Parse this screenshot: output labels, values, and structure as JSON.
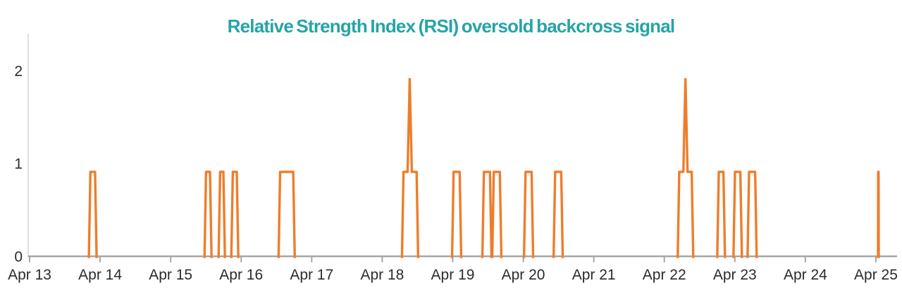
{
  "chart_data": {
    "type": "line",
    "title": "Relative Strength Index (RSI) oversold backcross signal",
    "xlabel": "",
    "ylabel": "",
    "legend": "none",
    "grid": "off",
    "x_axis": {
      "tick_labels": [
        "Apr 13",
        "Apr 14",
        "Apr 15",
        "Apr 16",
        "Apr 17",
        "Apr 18",
        "Apr 19",
        "Apr 20",
        "Apr 21",
        "Apr 22",
        "Apr 23",
        "Apr 24",
        "Apr 25"
      ],
      "tick_days": [
        13,
        14,
        15,
        16,
        17,
        18,
        19,
        20,
        21,
        22,
        23,
        24,
        25
      ],
      "range_days": [
        13,
        25.3
      ]
    },
    "y_axis": {
      "tick_labels": [
        "0",
        "1",
        "2"
      ],
      "tick_values": [
        0,
        1,
        2
      ],
      "range": [
        0,
        2.4
      ]
    },
    "series_name": "RSI oversold backcross signal",
    "baseline_value": 0,
    "pulses": [
      {
        "start": 13.84,
        "end": 13.95,
        "value": 0.91
      },
      {
        "start": 15.48,
        "end": 15.58,
        "value": 0.91
      },
      {
        "start": 15.68,
        "end": 15.77,
        "value": 0.91
      },
      {
        "start": 15.86,
        "end": 15.96,
        "value": 0.91
      },
      {
        "start": 16.53,
        "end": 16.76,
        "value": 0.91
      },
      {
        "start": 18.28,
        "end": 18.51,
        "value": 0.91,
        "spike_at": 18.39,
        "spike_value": 1.91
      },
      {
        "start": 18.99,
        "end": 19.12,
        "value": 0.91
      },
      {
        "start": 19.42,
        "end": 19.55,
        "value": 0.91
      },
      {
        "start": 19.56,
        "end": 19.69,
        "value": 0.91
      },
      {
        "start": 20.01,
        "end": 20.14,
        "value": 0.91
      },
      {
        "start": 20.43,
        "end": 20.56,
        "value": 0.91
      },
      {
        "start": 22.19,
        "end": 22.41,
        "value": 0.91,
        "spike_at": 22.3,
        "spike_value": 1.91
      },
      {
        "start": 22.75,
        "end": 22.86,
        "value": 0.91
      },
      {
        "start": 22.98,
        "end": 23.1,
        "value": 0.91
      },
      {
        "start": 23.18,
        "end": 23.31,
        "value": 0.91
      },
      {
        "start": 25.03,
        "end": 25.04,
        "value": 0.91
      }
    ],
    "colors": {
      "line": "#EE7D2B",
      "title": "#26A4A7",
      "x_axis_line": "#A6A6A6",
      "y_axis_line": "#D9D9D9",
      "tick": "#A6A6A6",
      "label_text": "#2B2B2B"
    }
  }
}
